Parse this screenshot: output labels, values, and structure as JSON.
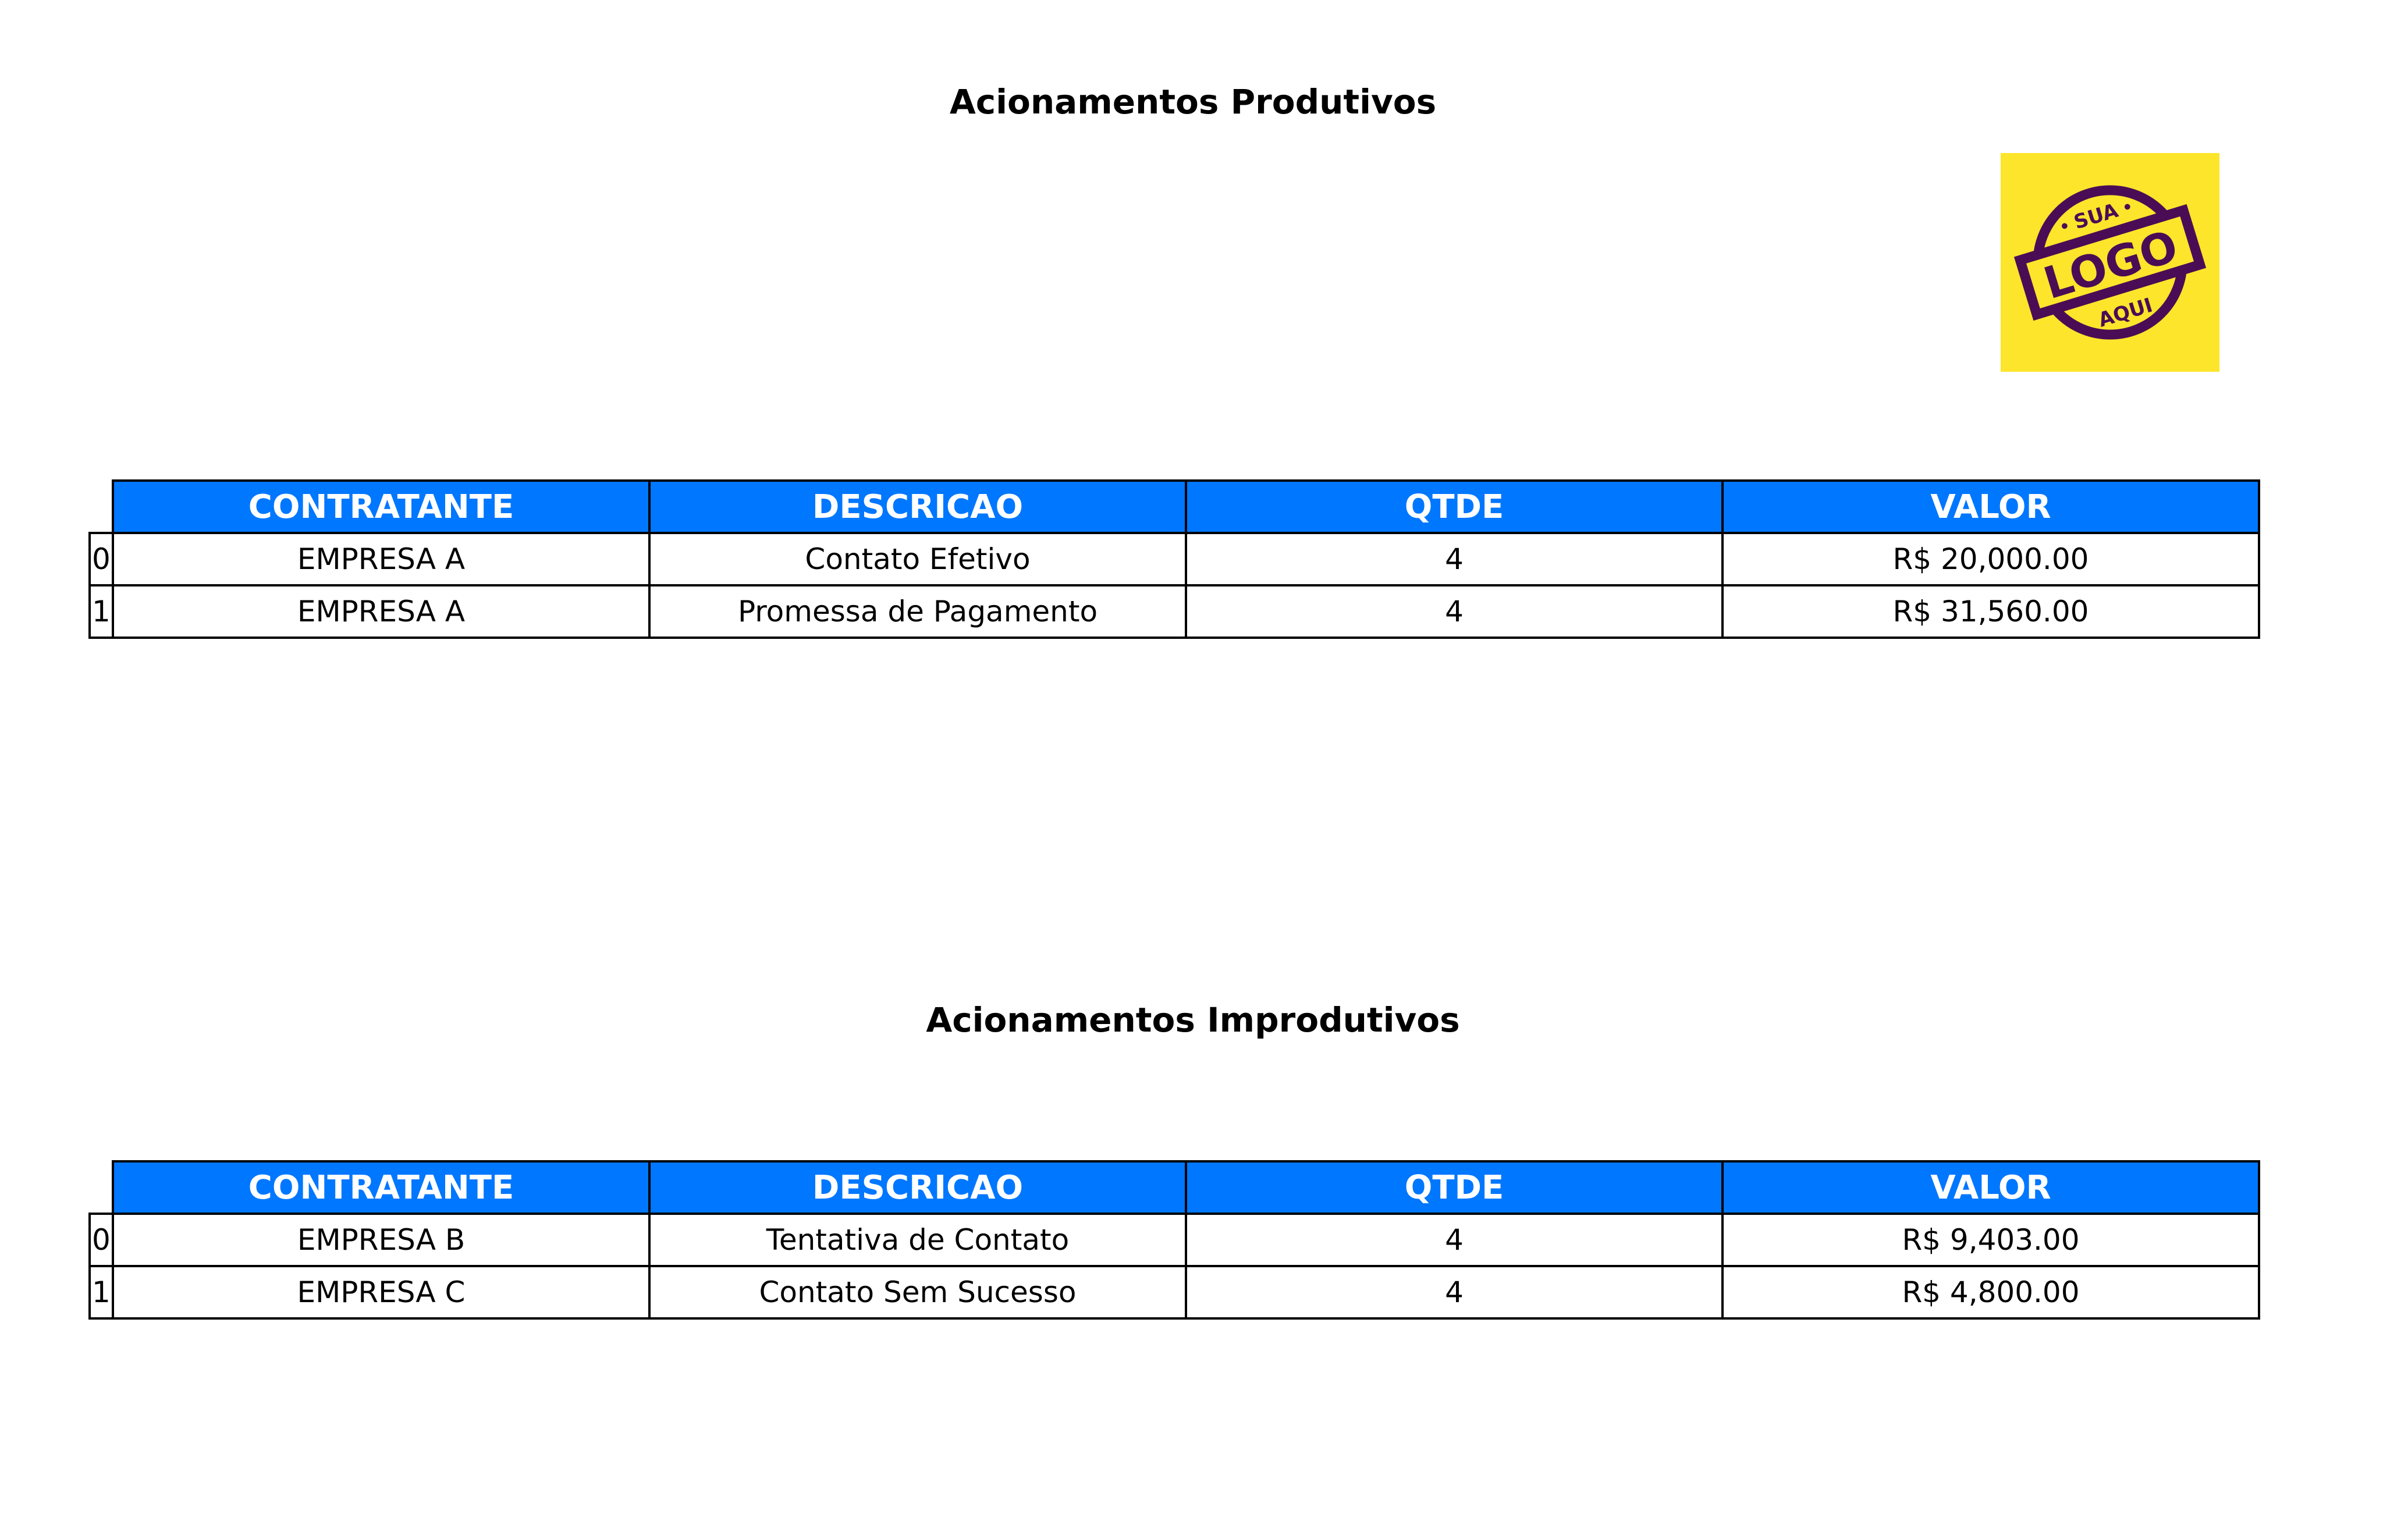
{
  "colors": {
    "header_bg": "#0077ff",
    "header_text": "#ffffff",
    "logo_bg": "#fde52b",
    "logo_ink": "#4a0d55"
  },
  "logo": {
    "icon": "logo-placeholder-stamp",
    "text_top": "SUA",
    "text_main": "LOGO",
    "text_bottom": "AQUI"
  },
  "produtivos": {
    "title": "Acionamentos Produtivos",
    "columns": [
      "CONTRATANTE",
      "DESCRICAO",
      "QTDE",
      "VALOR"
    ],
    "rows": [
      {
        "index": "0",
        "contratante": "EMPRESA A",
        "descricao": "Contato Efetivo",
        "qtde": "4",
        "valor": "R$ 20,000.00"
      },
      {
        "index": "1",
        "contratante": "EMPRESA A",
        "descricao": "Promessa de Pagamento",
        "qtde": "4",
        "valor": "R$ 31,560.00"
      }
    ]
  },
  "improdutivos": {
    "title": "Acionamentos Improdutivos",
    "columns": [
      "CONTRATANTE",
      "DESCRICAO",
      "QTDE",
      "VALOR"
    ],
    "rows": [
      {
        "index": "0",
        "contratante": "EMPRESA B",
        "descricao": "Tentativa de Contato",
        "qtde": "4",
        "valor": "R$ 9,403.00"
      },
      {
        "index": "1",
        "contratante": "EMPRESA C",
        "descricao": "Contato Sem Sucesso",
        "qtde": "4",
        "valor": "R$ 4,800.00"
      }
    ]
  }
}
